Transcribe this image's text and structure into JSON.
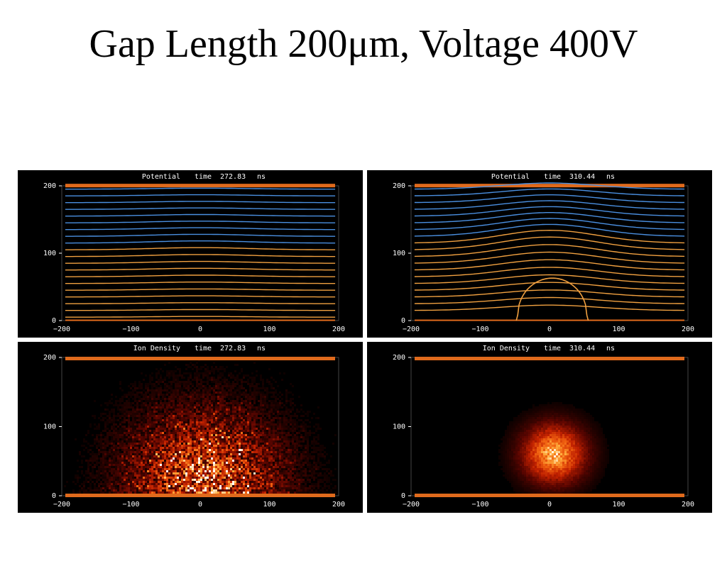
{
  "page": {
    "title": "Gap Length 200μm, Voltage 400V"
  },
  "colors": {
    "background": "#000000",
    "electrode": "#e06a1c",
    "contour_low": "#f0a040",
    "contour_high": "#4a8fe0",
    "heat_low": "#3a0000",
    "heat_mid": "#c02000",
    "heat_high": "#ffffff"
  },
  "chart_data": [
    {
      "type": "line",
      "title": "Potential",
      "time_label": "time",
      "time_value": "272.83",
      "time_unit": "ns",
      "xlim": [
        -200,
        200
      ],
      "ylim": [
        0,
        200
      ],
      "xticks": [
        "−200",
        "−100",
        "0",
        "100",
        "200"
      ],
      "yticks": [
        "0",
        "100",
        "200"
      ],
      "levels_low": [
        5,
        15,
        25,
        35,
        45,
        55,
        65,
        75,
        85,
        95,
        105
      ],
      "levels_high": [
        115,
        125,
        135,
        145,
        155,
        165,
        175,
        185,
        195
      ],
      "bump": 0.06,
      "lobe": null
    },
    {
      "type": "line",
      "title": "Potential",
      "time_label": "time",
      "time_value": "310.44",
      "time_unit": "ns",
      "xlim": [
        -200,
        200
      ],
      "ylim": [
        0,
        200
      ],
      "xticks": [
        "−200",
        "−100",
        "0",
        "100",
        "200"
      ],
      "yticks": [
        "0",
        "100",
        "200"
      ],
      "levels_low": [
        15,
        25,
        35,
        45,
        55,
        65,
        75,
        85,
        95,
        105,
        115
      ],
      "levels_high": [
        125,
        135,
        145,
        155,
        165,
        175,
        185,
        195
      ],
      "bump": 0.35,
      "lobe": {
        "x_left": -46,
        "x_right": 54,
        "peak": 63
      }
    },
    {
      "type": "heatmap",
      "title": "Ion Density",
      "time_label": "time",
      "time_value": "272.83",
      "time_unit": "ns",
      "xlim": [
        -200,
        200
      ],
      "ylim": [
        0,
        200
      ],
      "xticks": [
        "−200",
        "−100",
        "0",
        "100",
        "200"
      ],
      "yticks": [
        "0",
        "100",
        "200"
      ],
      "peak_x": 5,
      "peak_y": 20,
      "spread_x": 75,
      "spread_y": 70,
      "noise": 0.9
    },
    {
      "type": "heatmap",
      "title": "Ion Density",
      "time_label": "time",
      "time_value": "310.44",
      "time_unit": "ns",
      "xlim": [
        -200,
        200
      ],
      "ylim": [
        0,
        200
      ],
      "xticks": [
        "−200",
        "−100",
        "0",
        "100",
        "200"
      ],
      "yticks": [
        "0",
        "100",
        "200"
      ],
      "peak_x": 5,
      "peak_y": 62,
      "spread_x": 32,
      "spread_y": 30,
      "noise": 0.25
    }
  ]
}
